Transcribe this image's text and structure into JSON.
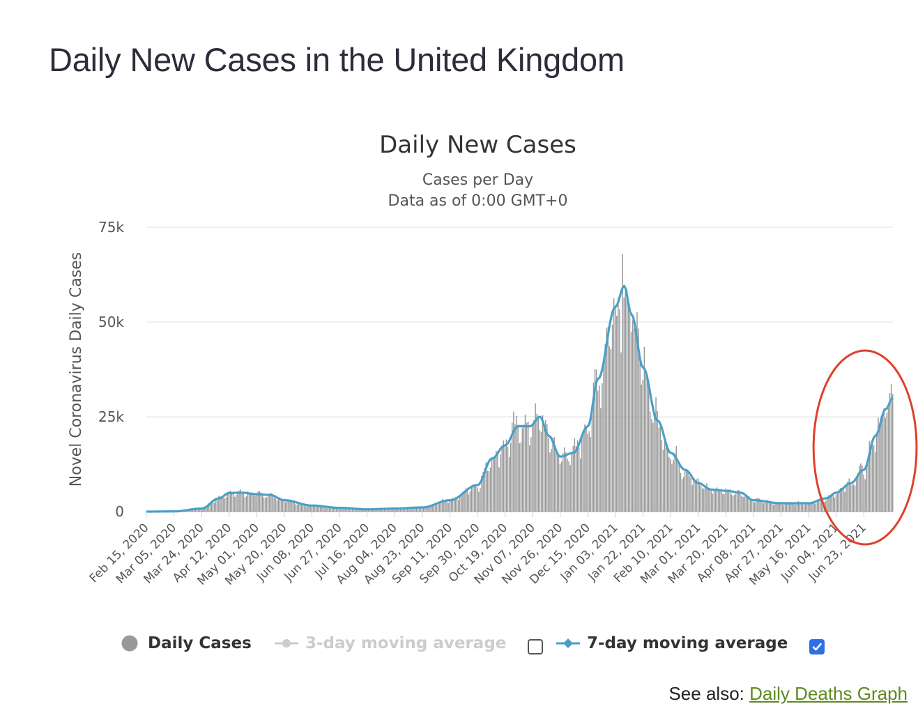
{
  "page": {
    "title": "Daily New Cases in the United Kingdom",
    "see_also_label": "See also:",
    "see_also_link": "Daily Deaths Graph"
  },
  "chart_data": {
    "type": "bar",
    "title": "Daily New Cases",
    "subtitle_lines": [
      "Cases per Day",
      "Data as of 0:00 GMT+0"
    ],
    "ylabel": "Novel Coronavirus Daily Cases",
    "xlabel": "",
    "ylim": [
      0,
      75000
    ],
    "yticks": [
      0,
      25000,
      50000,
      75000
    ],
    "ytick_labels": [
      "0",
      "25k",
      "50k",
      "75k"
    ],
    "x_start": "Feb 15, 2020",
    "x_end": "Jul 13, 2021",
    "x_tick_labels": [
      "Feb 15, 2020",
      "Mar 05, 2020",
      "Mar 24, 2020",
      "Apr 12, 2020",
      "May 01, 2020",
      "May 20, 2020",
      "Jun 08, 2020",
      "Jun 27, 2020",
      "Jul 16, 2020",
      "Aug 04, 2020",
      "Aug 23, 2020",
      "Sep 11, 2020",
      "Sep 30, 2020",
      "Oct 19, 2020",
      "Nov 07, 2020",
      "Nov 26, 2020",
      "Dec 15, 2020",
      "Jan 03, 2021",
      "Jan 22, 2021",
      "Feb 10, 2021",
      "Mar 01, 2021",
      "Mar 20, 2021",
      "Apr 08, 2021",
      "Apr 27, 2021",
      "May 16, 2021",
      "Jun 04, 2021",
      "Jun 23, 2021"
    ],
    "grid": true,
    "legend_placement": "bottom",
    "colors": {
      "bars": "#999999",
      "moving_average_7day": "#4a9fc8",
      "moving_average_3day": "#cccccc",
      "annotation": "#e0402a",
      "grid": "#e6e6e6"
    },
    "key_points": [
      {
        "x": "Feb 15, 2020",
        "y": 0
      },
      {
        "x": "Mar 05, 2020",
        "y": 50
      },
      {
        "x": "Mar 24, 2020",
        "y": 800
      },
      {
        "x": "Apr 05, 2020",
        "y": 3500
      },
      {
        "x": "Apr 12, 2020",
        "y": 4900
      },
      {
        "x": "Apr 20, 2020",
        "y": 5000
      },
      {
        "x": "May 01, 2020",
        "y": 4600
      },
      {
        "x": "May 10, 2020",
        "y": 4400
      },
      {
        "x": "May 20, 2020",
        "y": 3000
      },
      {
        "x": "Jun 08, 2020",
        "y": 1600
      },
      {
        "x": "Jun 27, 2020",
        "y": 1000
      },
      {
        "x": "Jul 16, 2020",
        "y": 600
      },
      {
        "x": "Aug 04, 2020",
        "y": 800
      },
      {
        "x": "Aug 23, 2020",
        "y": 1100
      },
      {
        "x": "Sep 11, 2020",
        "y": 3000
      },
      {
        "x": "Sep 30, 2020",
        "y": 7000
      },
      {
        "x": "Oct 10, 2020",
        "y": 14000
      },
      {
        "x": "Oct 19, 2020",
        "y": 17500
      },
      {
        "x": "Oct 28, 2020",
        "y": 22500
      },
      {
        "x": "Nov 05, 2020",
        "y": 22500
      },
      {
        "x": "Nov 12, 2020",
        "y": 25000
      },
      {
        "x": "Nov 18, 2020",
        "y": 20000
      },
      {
        "x": "Nov 26, 2020",
        "y": 14500
      },
      {
        "x": "Dec 05, 2020",
        "y": 15500
      },
      {
        "x": "Dec 15, 2020",
        "y": 22500
      },
      {
        "x": "Dec 22, 2020",
        "y": 35000
      },
      {
        "x": "Jan 03, 2021",
        "y": 54000
      },
      {
        "x": "Jan 09, 2021",
        "y": 59500
      },
      {
        "x": "Jan 14, 2021",
        "y": 52000
      },
      {
        "x": "Jan 22, 2021",
        "y": 38000
      },
      {
        "x": "Feb 01, 2021",
        "y": 24000
      },
      {
        "x": "Feb 10, 2021",
        "y": 15500
      },
      {
        "x": "Feb 20, 2021",
        "y": 11000
      },
      {
        "x": "Mar 01, 2021",
        "y": 7500
      },
      {
        "x": "Mar 10, 2021",
        "y": 5800
      },
      {
        "x": "Mar 20, 2021",
        "y": 5500
      },
      {
        "x": "Mar 30, 2021",
        "y": 5000
      },
      {
        "x": "Apr 08, 2021",
        "y": 3000
      },
      {
        "x": "Apr 27, 2021",
        "y": 2200
      },
      {
        "x": "May 16, 2021",
        "y": 2200
      },
      {
        "x": "May 28, 2021",
        "y": 3500
      },
      {
        "x": "Jun 04, 2021",
        "y": 5000
      },
      {
        "x": "Jun 14, 2021",
        "y": 7500
      },
      {
        "x": "Jun 23, 2021",
        "y": 11000
      },
      {
        "x": "Jul 01, 2021",
        "y": 20000
      },
      {
        "x": "Jul 08, 2021",
        "y": 27000
      },
      {
        "x": "Jul 13, 2021",
        "y": 30000
      }
    ],
    "peak": {
      "x": "Jan 08, 2021",
      "y": 68000
    },
    "series": [
      {
        "name": "Daily Cases",
        "kind": "bar",
        "enabled": true
      },
      {
        "name": "3-day moving average",
        "kind": "line",
        "enabled": false
      },
      {
        "name": "7-day moving average",
        "kind": "line",
        "enabled": true
      }
    ],
    "annotation": {
      "shape": "ellipse",
      "highlight_from": "May 28, 2021",
      "highlight_to": "Jul 13, 2021"
    }
  }
}
